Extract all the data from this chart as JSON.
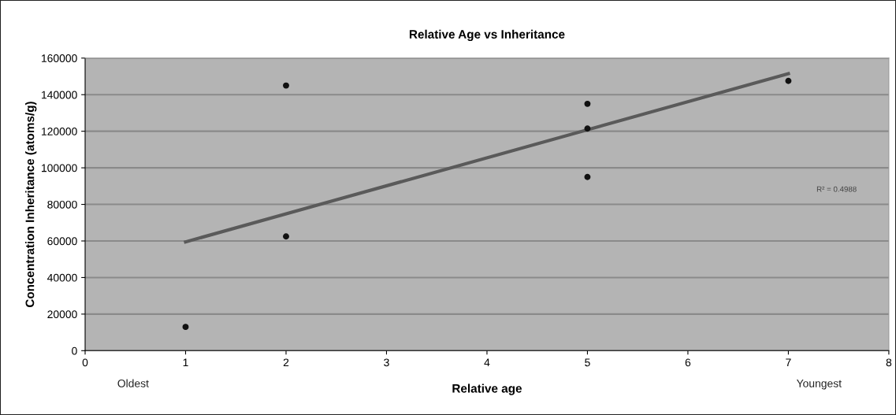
{
  "chart_data": {
    "type": "scatter",
    "title": "Relative Age vs Inheritance",
    "xlabel": "Relative age",
    "ylabel": "Concentration Inheritance (atoms/g)",
    "series": [
      {
        "marker": "circle",
        "color": "#111111",
        "x": [
          1,
          2,
          2,
          5,
          5,
          5,
          7
        ],
        "values": [
          13000,
          145000,
          62500,
          135000,
          121500,
          95000,
          147500
        ]
      },
      {
        "type": "line",
        "marker": "none",
        "color": "#5a5a5a",
        "x": [
          1,
          7
        ],
        "values": [
          59500,
          151500
        ]
      }
    ],
    "xlim": [
      0,
      8
    ],
    "xticks": [
      0,
      1,
      2,
      3,
      4,
      5,
      6,
      7,
      8
    ],
    "ylim": [
      0,
      160000
    ],
    "yticks": [
      0,
      20000,
      40000,
      60000,
      80000,
      100000,
      120000,
      140000,
      160000
    ],
    "grid": "y",
    "annotations": [
      "Oldest",
      "Youngest",
      "R² = 0.4988"
    ]
  }
}
